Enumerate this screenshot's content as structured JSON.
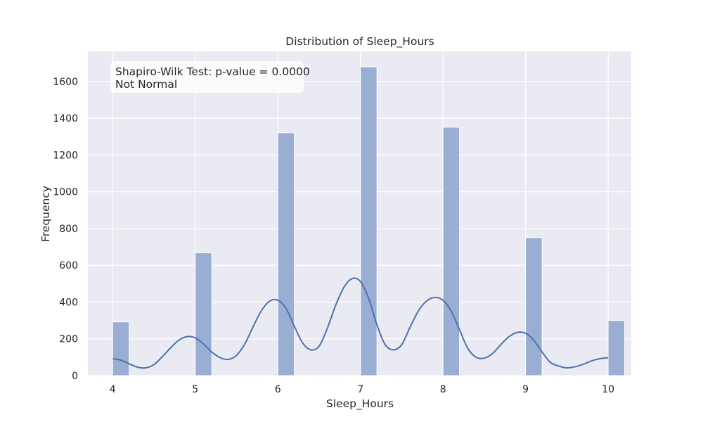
{
  "chart_data": {
    "type": "bar",
    "title": "Distribution of Sleep_Hours",
    "xlabel": "Sleep_Hours",
    "ylabel": "Frequency",
    "xlim": [
      3.7,
      10.28
    ],
    "ylim": [
      0,
      1764
    ],
    "x_ticks": [
      4,
      5,
      6,
      7,
      8,
      9,
      10
    ],
    "y_ticks": [
      0,
      200,
      400,
      600,
      800,
      1000,
      1200,
      1400,
      1600
    ],
    "grid": true,
    "bars": [
      {
        "x0": 4.0,
        "x1": 4.2,
        "value": 292
      },
      {
        "x0": 5.0,
        "x1": 5.2,
        "value": 668
      },
      {
        "x0": 6.0,
        "x1": 6.2,
        "value": 1321
      },
      {
        "x0": 7.0,
        "x1": 7.2,
        "value": 1680
      },
      {
        "x0": 8.0,
        "x1": 8.2,
        "value": 1351
      },
      {
        "x0": 9.0,
        "x1": 9.2,
        "value": 751
      },
      {
        "x0": 10.0,
        "x1": 10.2,
        "value": 300
      }
    ],
    "kde": {
      "x": [
        4.0,
        4.1,
        4.2,
        4.3,
        4.4,
        4.5,
        4.6,
        4.7,
        4.8,
        4.9,
        5.0,
        5.1,
        5.2,
        5.3,
        5.4,
        5.5,
        5.6,
        5.7,
        5.8,
        5.9,
        6.0,
        6.1,
        6.2,
        6.3,
        6.4,
        6.5,
        6.6,
        6.7,
        6.8,
        6.9,
        7.0,
        7.1,
        7.2,
        7.3,
        7.4,
        7.5,
        7.6,
        7.7,
        7.8,
        7.9,
        8.0,
        8.1,
        8.2,
        8.3,
        8.4,
        8.5,
        8.6,
        8.7,
        8.8,
        8.9,
        9.0,
        9.1,
        9.2,
        9.3,
        9.4,
        9.5,
        9.6,
        9.7,
        9.8,
        9.9,
        10.0
      ],
      "y": [
        92,
        84,
        64,
        46,
        42,
        60,
        102,
        150,
        192,
        212,
        205,
        172,
        128,
        98,
        88,
        110,
        172,
        265,
        352,
        405,
        410,
        365,
        268,
        178,
        140,
        160,
        258,
        382,
        480,
        528,
        512,
        420,
        276,
        168,
        140,
        168,
        262,
        350,
        405,
        425,
        410,
        350,
        250,
        148,
        100,
        95,
        120,
        168,
        212,
        235,
        230,
        192,
        128,
        72,
        52,
        42,
        48,
        62,
        80,
        92,
        97
      ]
    },
    "annotation": {
      "line1": "Shapiro-Wilk Test: p-value = 0.0000",
      "line2": "Not Normal"
    },
    "colors": {
      "background": "#eaeaf2",
      "grid": "#ffffff",
      "bar": "#9aadd2",
      "bar_edge": "#ffffff",
      "kde": "#4c72b0"
    }
  }
}
